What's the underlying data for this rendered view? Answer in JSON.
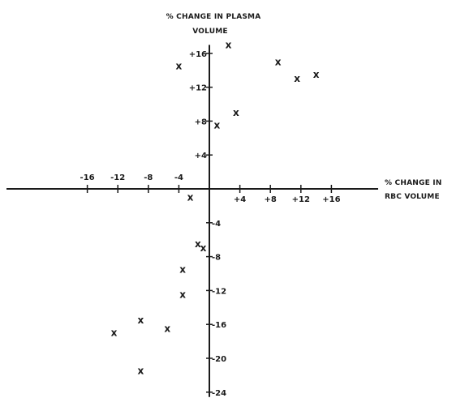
{
  "chart_data": {
    "type": "scatter",
    "xlabel_lines": [
      "% CHANGE IN",
      "RBC VOLUME"
    ],
    "ylabel_lines": [
      "% CHANGE IN PLASMA",
      "VOLUME"
    ],
    "xlim": [
      -24,
      20
    ],
    "ylim": [
      -24,
      17
    ],
    "x_ticks": [
      -16,
      -12,
      -8,
      -4,
      4,
      8,
      12,
      16
    ],
    "x_tick_labels": [
      "-16",
      "-12",
      "-8",
      "-4",
      "+4",
      "+8",
      "+12",
      "+16"
    ],
    "y_ticks": [
      16,
      12,
      8,
      4,
      -4,
      -8,
      -12,
      -16,
      -20,
      -24
    ],
    "y_tick_labels": [
      "+16",
      "+12",
      "+8",
      "+4",
      "-4",
      "-8",
      "-12",
      "-16",
      "-20",
      "-24"
    ],
    "marker_label": "x",
    "grid": false,
    "points": [
      {
        "x": 2.5,
        "y": 17
      },
      {
        "x": 9,
        "y": 15
      },
      {
        "x": 11.5,
        "y": 13
      },
      {
        "x": 14,
        "y": 13.5
      },
      {
        "x": -4,
        "y": 14.5
      },
      {
        "x": 3.5,
        "y": 9
      },
      {
        "x": 1,
        "y": 7.5
      },
      {
        "x": -2.5,
        "y": -1
      },
      {
        "x": -1.5,
        "y": -6.5
      },
      {
        "x": -0.8,
        "y": -7
      },
      {
        "x": -3.5,
        "y": -9.5
      },
      {
        "x": -3.5,
        "y": -12.5
      },
      {
        "x": -9,
        "y": -15.5
      },
      {
        "x": -12.5,
        "y": -17
      },
      {
        "x": -5.5,
        "y": -16.5
      },
      {
        "x": -9,
        "y": -21.5
      }
    ]
  }
}
